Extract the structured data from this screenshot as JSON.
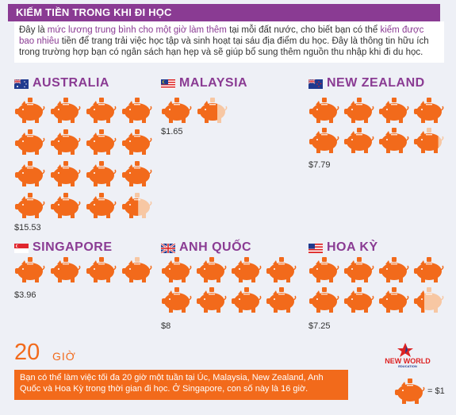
{
  "header": {
    "title": "KIẾM TIỀN TRONG KHI ĐI HỌC"
  },
  "intro": {
    "t1": "Đây là ",
    "h1": "mức lương trung bình cho một giờ làm thêm",
    "t2": " tại mỗi đất nước, cho biết bạn có thể ",
    "h2": "kiếm được bao nhiêu",
    "t3": " tiền để trang trải việc học tập và sinh hoạt tại sáu địa điểm du học. Đây là thông tin hữu ích trong trường hợp bạn có ngân sách hạn hẹp và sẽ giúp bổ sung thêm nguồn thu nhập khi đi du học."
  },
  "countries": [
    {
      "name": "AUSTRALIA",
      "amount": "$15.53",
      "value": 15.53
    },
    {
      "name": "MALAYSIA",
      "amount": "$1.65",
      "value": 1.65
    },
    {
      "name": "NEW ZEALAND",
      "amount": "$7.79",
      "value": 7.79
    },
    {
      "name": "SINGAPORE",
      "amount": "$3.96",
      "value": 3.96
    },
    {
      "name": "ANH QUỐC",
      "amount": "$8",
      "value": 8
    },
    {
      "name": "HOA KỲ",
      "amount": "$7.25",
      "value": 7.25
    }
  ],
  "footer": {
    "hours_number": "20",
    "hours_unit": "GIỜ",
    "note": "Bạn có thể làm việc tối đa 20 giờ một tuần tại Úc, Malaysia, New Zealand, Anh Quốc và Hoa Kỳ trong thời gian đi học. Ở Singapore, con số này là 16 giờ.",
    "legend": "= $1",
    "logo_line1": "NEW WORLD",
    "logo_line2": "EDUCATION"
  },
  "colors": {
    "accent": "#8a3b93",
    "orange": "#f26a1b",
    "pale": "#f7c7a3"
  },
  "icons": {
    "unit": "piggy-bank-icon"
  }
}
